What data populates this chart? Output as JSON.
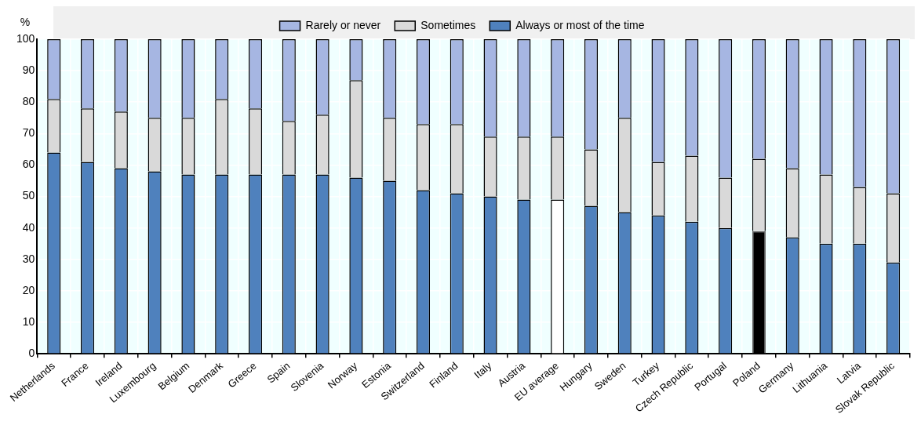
{
  "chart_data": {
    "type": "bar",
    "stacked": true,
    "ylabel": "%",
    "ylim": [
      0,
      100
    ],
    "yticks": [
      0,
      10,
      20,
      30,
      40,
      50,
      60,
      70,
      80,
      90,
      100
    ],
    "grid": true,
    "legend": "top",
    "categories": [
      "Netherlands",
      "France",
      "Ireland",
      "Luxembourg",
      "Belgium",
      "Denmark",
      "Greece",
      "Spain",
      "Slovenia",
      "Norway",
      "Estonia",
      "Switzerland",
      "Finland",
      "Italy",
      "Austria",
      "EU average",
      "Hungary",
      "Sweden",
      "Turkey",
      "Czech Republic",
      "Portugal",
      "Poland",
      "Germany",
      "Lithuania",
      "Latvia",
      "Slovak Republic"
    ],
    "series": [
      {
        "name": "Always or most of the time",
        "color": "#4f81bd",
        "colors": [
          "#4f81bd",
          "#4f81bd",
          "#4f81bd",
          "#4f81bd",
          "#4f81bd",
          "#4f81bd",
          "#4f81bd",
          "#4f81bd",
          "#4f81bd",
          "#4f81bd",
          "#4f81bd",
          "#4f81bd",
          "#4f81bd",
          "#4f81bd",
          "#4f81bd",
          "#ffffff",
          "#4f81bd",
          "#4f81bd",
          "#4f81bd",
          "#4f81bd",
          "#4f81bd",
          "#000000",
          "#4f81bd",
          "#4f81bd",
          "#4f81bd",
          "#4f81bd"
        ],
        "values": [
          64,
          61,
          59,
          58,
          57,
          57,
          57,
          57,
          57,
          56,
          55,
          52,
          51,
          50,
          49,
          49,
          47,
          45,
          44,
          42,
          40,
          39,
          37,
          35,
          35,
          29
        ]
      },
      {
        "name": "Sometimes",
        "color": "#d9d9d9",
        "values": [
          17,
          17,
          18,
          17,
          18,
          24,
          21,
          17,
          19,
          31,
          20,
          21,
          22,
          19,
          20,
          20,
          18,
          30,
          17,
          21,
          16,
          23,
          22,
          22,
          18,
          22
        ]
      },
      {
        "name": "Rarely or never",
        "color": "#a6b6e2",
        "values": [
          19,
          22,
          23,
          25,
          25,
          19,
          22,
          26,
          24,
          13,
          25,
          27,
          27,
          31,
          31,
          31,
          35,
          25,
          39,
          37,
          44,
          38,
          41,
          43,
          47,
          49
        ]
      }
    ]
  }
}
